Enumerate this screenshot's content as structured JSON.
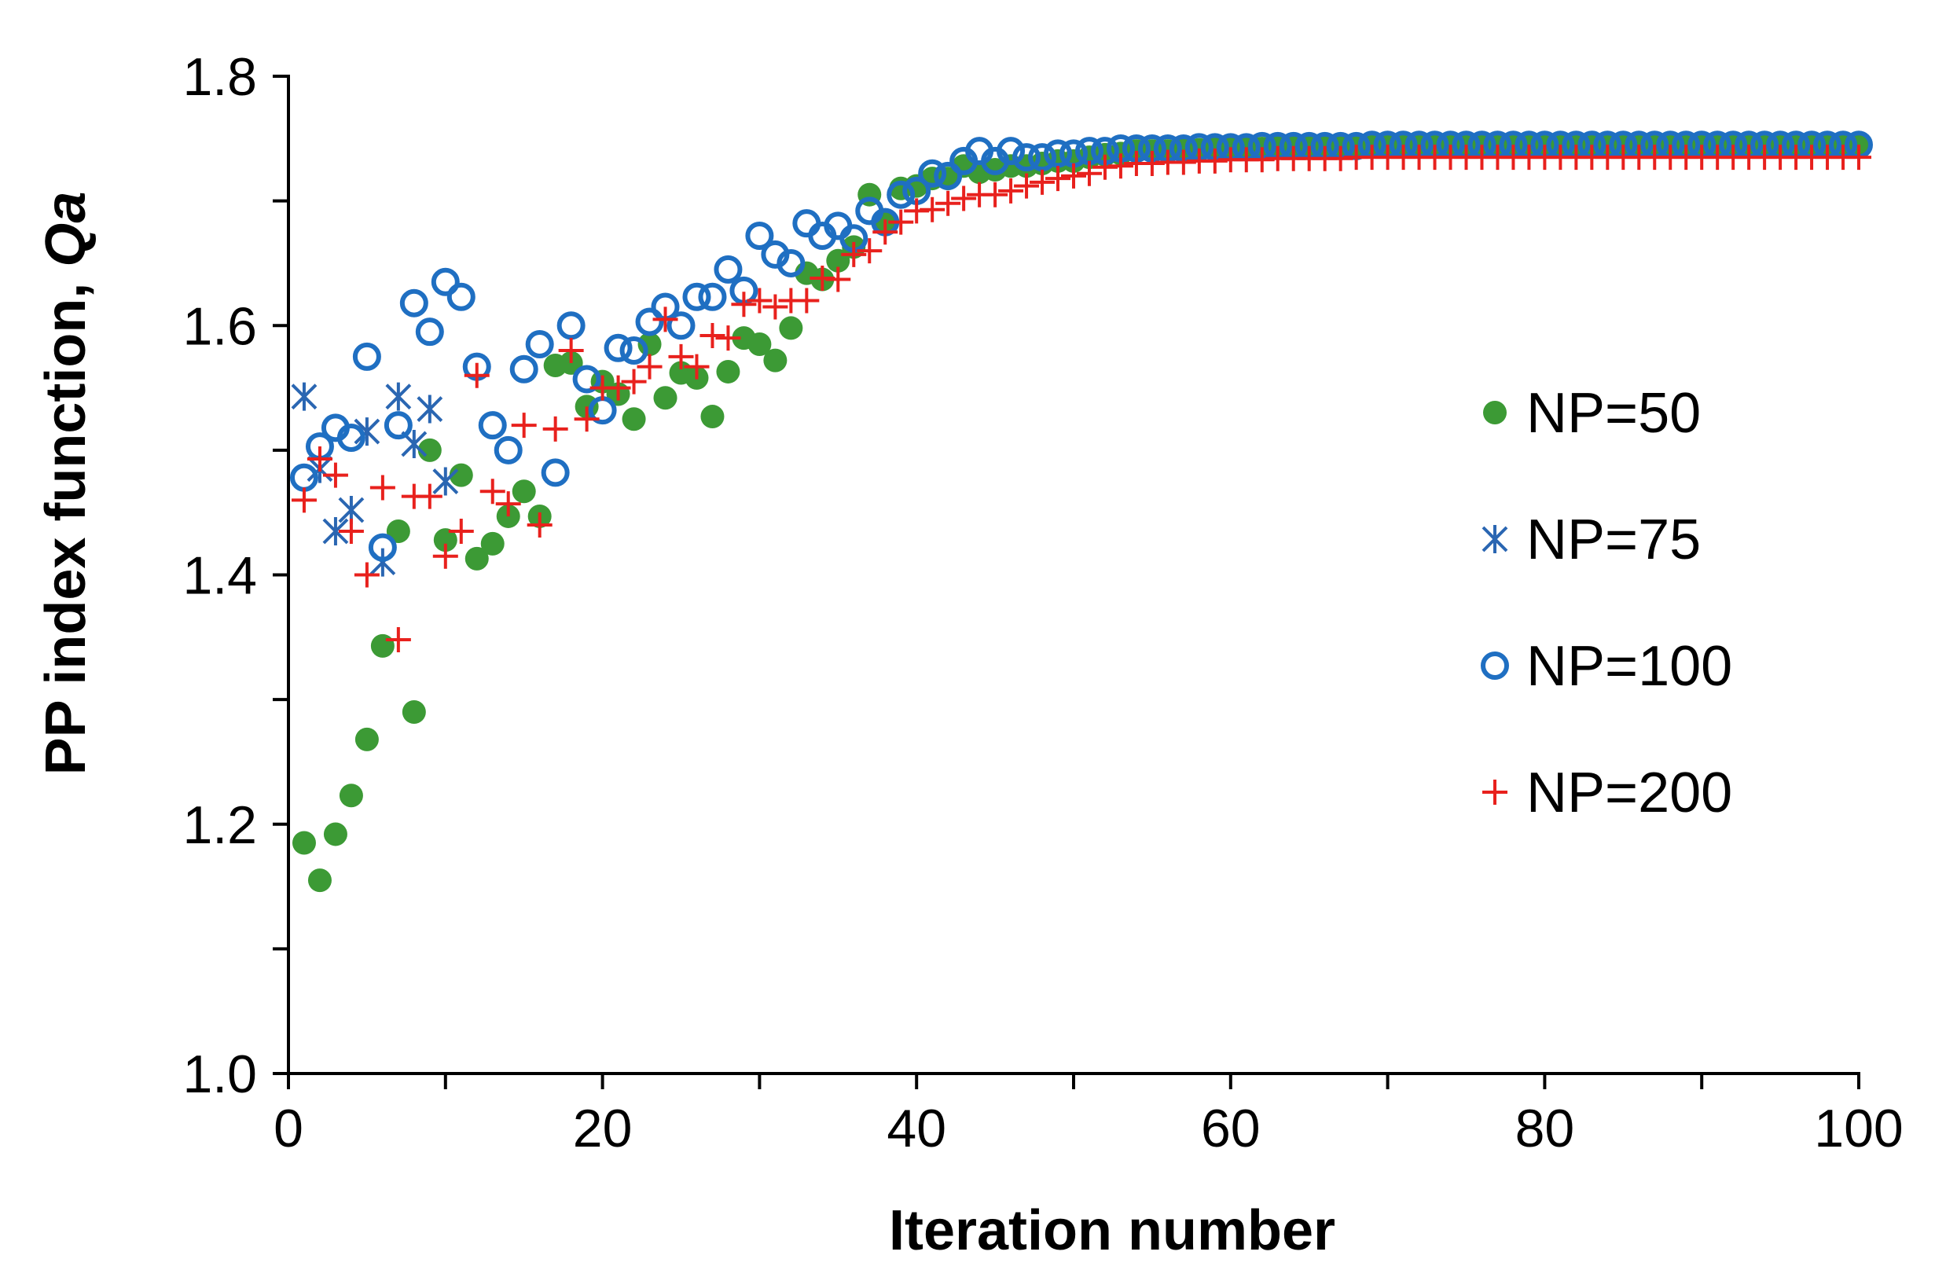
{
  "chart_data": {
    "type": "scatter",
    "title": "",
    "xlabel": "Iteration number",
    "ylabel_main": "PP index function, ",
    "ylabel_italic": "Qa",
    "xlim": [
      0,
      100
    ],
    "ylim": [
      1.0,
      1.8
    ],
    "x_major_ticks": [
      0,
      20,
      40,
      60,
      80,
      100
    ],
    "x_tick_labels": [
      "0",
      "20",
      "40",
      "60",
      "80",
      "100"
    ],
    "x_minor_step": 10,
    "y_major_ticks": [
      1.0,
      1.2,
      1.4,
      1.6,
      1.8
    ],
    "y_tick_labels": [
      "1.0",
      "1.2",
      "1.4",
      "1.6",
      "1.8"
    ],
    "y_minor_step": 0.1,
    "grid": false,
    "legend_position": "right",
    "series": [
      {
        "name": "NP=50",
        "marker": "filled-circle",
        "color": "#3c9a35",
        "x": [
          1,
          2,
          3,
          4,
          5,
          6,
          7,
          8,
          9,
          10,
          11,
          12,
          13,
          14,
          15,
          16,
          17,
          18,
          19,
          20,
          21,
          22,
          23,
          24,
          25,
          26,
          27,
          28,
          29,
          30,
          31,
          32,
          33,
          34,
          35,
          36,
          37,
          38,
          39,
          40,
          41,
          42,
          43,
          44,
          45,
          46,
          47,
          48,
          49,
          50,
          51,
          52,
          53,
          54,
          55,
          56,
          57,
          58,
          59,
          60,
          61,
          62,
          63,
          64,
          65,
          66,
          67,
          68,
          69,
          70,
          71,
          72,
          73,
          74,
          75,
          76,
          77,
          78,
          79,
          80,
          81,
          82,
          83,
          84,
          85,
          86,
          87,
          88,
          89,
          90,
          91,
          92,
          93,
          94,
          95,
          96,
          97,
          98,
          99,
          100
        ],
        "y": [
          1.185,
          1.155,
          1.192,
          1.223,
          1.268,
          1.343,
          1.435,
          1.29,
          1.5,
          1.428,
          1.48,
          1.413,
          1.425,
          1.447,
          1.467,
          1.447,
          1.568,
          1.57,
          1.535,
          1.555,
          1.545,
          1.525,
          1.585,
          1.542,
          1.562,
          1.558,
          1.527,
          1.563,
          1.59,
          1.585,
          1.572,
          1.598,
          1.642,
          1.637,
          1.652,
          1.663,
          1.705,
          1.682,
          1.71,
          1.712,
          1.718,
          1.718,
          1.728,
          1.723,
          1.725,
          1.728,
          1.728,
          1.73,
          1.732,
          1.732,
          1.735,
          1.737,
          1.738,
          1.74,
          1.74,
          1.74,
          1.741,
          1.741,
          1.742,
          1.742,
          1.742,
          1.742,
          1.743,
          1.743,
          1.743,
          1.743,
          1.743,
          1.744,
          1.744,
          1.744,
          1.744,
          1.744,
          1.744,
          1.744,
          1.744,
          1.744,
          1.744,
          1.744,
          1.744,
          1.744,
          1.745,
          1.745,
          1.745,
          1.745,
          1.745,
          1.745,
          1.745,
          1.745,
          1.745,
          1.745,
          1.745,
          1.745,
          1.745,
          1.745,
          1.745,
          1.745,
          1.745,
          1.745,
          1.745,
          1.745
        ]
      },
      {
        "name": "NP=75",
        "marker": "asterisk",
        "color": "#2a66b2",
        "x": [
          1,
          2,
          3,
          4,
          5,
          6,
          7,
          8,
          9,
          10
        ],
        "y": [
          1.543,
          1.485,
          1.435,
          1.452,
          1.515,
          1.41,
          1.543,
          1.505,
          1.533,
          1.475
        ]
      },
      {
        "name": "NP=100",
        "marker": "open-circle",
        "color": "#1f6fc2",
        "x": [
          1,
          2,
          3,
          4,
          5,
          6,
          7,
          8,
          9,
          10,
          11,
          12,
          13,
          14,
          15,
          16,
          17,
          18,
          19,
          20,
          21,
          22,
          23,
          24,
          25,
          26,
          27,
          28,
          29,
          30,
          31,
          32,
          33,
          34,
          35,
          36,
          37,
          38,
          39,
          40,
          41,
          42,
          43,
          44,
          45,
          46,
          47,
          48,
          49,
          50,
          51,
          52,
          53,
          54,
          55,
          56,
          57,
          58,
          59,
          60,
          61,
          62,
          63,
          64,
          65,
          66,
          67,
          68,
          69,
          70,
          71,
          72,
          73,
          74,
          75,
          76,
          77,
          78,
          79,
          80,
          81,
          82,
          83,
          84,
          85,
          86,
          87,
          88,
          89,
          90,
          91,
          92,
          93,
          94,
          95,
          96,
          97,
          98,
          99,
          100
        ],
        "y": [
          1.478,
          1.503,
          1.518,
          1.51,
          1.575,
          1.422,
          1.52,
          1.618,
          1.595,
          1.635,
          1.623,
          1.567,
          1.52,
          1.5,
          1.565,
          1.585,
          1.482,
          1.6,
          1.557,
          1.532,
          1.582,
          1.58,
          1.603,
          1.615,
          1.6,
          1.623,
          1.623,
          1.645,
          1.628,
          1.672,
          1.657,
          1.65,
          1.682,
          1.672,
          1.68,
          1.67,
          1.692,
          1.683,
          1.705,
          1.708,
          1.722,
          1.72,
          1.732,
          1.74,
          1.732,
          1.74,
          1.735,
          1.735,
          1.738,
          1.738,
          1.74,
          1.74,
          1.742,
          1.742,
          1.742,
          1.742,
          1.742,
          1.743,
          1.743,
          1.743,
          1.743,
          1.744,
          1.744,
          1.744,
          1.744,
          1.744,
          1.744,
          1.744,
          1.745,
          1.745,
          1.745,
          1.745,
          1.745,
          1.745,
          1.745,
          1.745,
          1.745,
          1.745,
          1.745,
          1.745,
          1.745,
          1.745,
          1.745,
          1.745,
          1.745,
          1.745,
          1.745,
          1.745,
          1.745,
          1.745,
          1.745,
          1.745,
          1.745,
          1.745,
          1.745,
          1.745,
          1.745,
          1.745,
          1.745,
          1.745
        ]
      },
      {
        "name": "NP=200",
        "marker": "plus",
        "color": "#e8211d",
        "x": [
          1,
          2,
          3,
          4,
          5,
          6,
          7,
          8,
          9,
          10,
          11,
          12,
          13,
          14,
          15,
          16,
          17,
          18,
          19,
          20,
          21,
          22,
          23,
          24,
          25,
          26,
          27,
          28,
          29,
          30,
          31,
          32,
          33,
          34,
          35,
          36,
          37,
          38,
          39,
          40,
          41,
          42,
          43,
          44,
          45,
          46,
          47,
          48,
          49,
          50,
          51,
          52,
          53,
          54,
          55,
          56,
          57,
          58,
          59,
          60,
          61,
          62,
          63,
          64,
          65,
          66,
          67,
          68,
          69,
          70,
          71,
          72,
          73,
          74,
          75,
          76,
          77,
          78,
          79,
          80,
          81,
          82,
          83,
          84,
          85,
          86,
          87,
          88,
          89,
          90,
          91,
          92,
          93,
          94,
          95,
          96,
          97,
          98,
          99,
          100
        ],
        "y": [
          1.46,
          1.493,
          1.48,
          1.435,
          1.4,
          1.47,
          1.348,
          1.463,
          1.463,
          1.415,
          1.435,
          1.56,
          1.467,
          1.457,
          1.52,
          1.44,
          1.517,
          1.58,
          1.525,
          1.55,
          1.55,
          1.555,
          1.567,
          1.605,
          1.575,
          1.567,
          1.592,
          1.59,
          1.617,
          1.62,
          1.615,
          1.62,
          1.62,
          1.638,
          1.637,
          1.657,
          1.66,
          1.675,
          1.683,
          1.692,
          1.693,
          1.698,
          1.702,
          1.705,
          1.705,
          1.708,
          1.712,
          1.715,
          1.718,
          1.72,
          1.722,
          1.727,
          1.728,
          1.73,
          1.73,
          1.731,
          1.731,
          1.732,
          1.732,
          1.733,
          1.733,
          1.733,
          1.734,
          1.734,
          1.734,
          1.734,
          1.734,
          1.735,
          1.735,
          1.735,
          1.735,
          1.735,
          1.735,
          1.735,
          1.735,
          1.735,
          1.735,
          1.735,
          1.735,
          1.735,
          1.735,
          1.735,
          1.735,
          1.735,
          1.735,
          1.735,
          1.735,
          1.735,
          1.735,
          1.735,
          1.735,
          1.735,
          1.735,
          1.735,
          1.735,
          1.735,
          1.735,
          1.735,
          1.735,
          1.735
        ]
      }
    ]
  }
}
